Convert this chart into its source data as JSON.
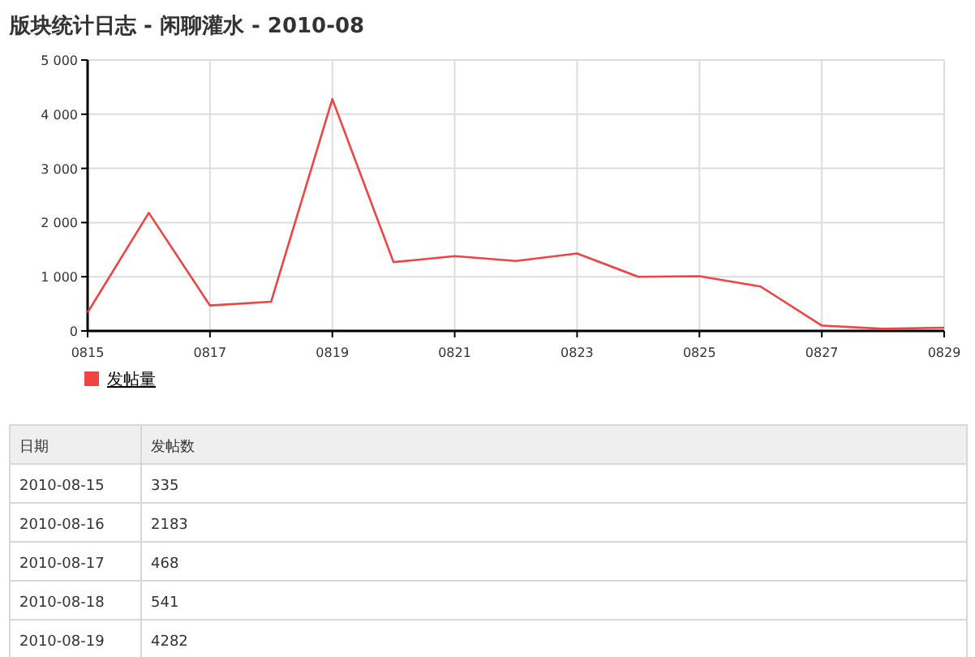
{
  "chart_data": {
    "type": "line",
    "title": "版块统计日志 - 闲聊灌水 - 2010-08",
    "categories": [
      "0815",
      null,
      "0817",
      null,
      "0819",
      null,
      "0821",
      null,
      "0823",
      null,
      "0825",
      null,
      "0827",
      null,
      "0829"
    ],
    "series": [
      {
        "name": "发帖量",
        "color": "#ee4444",
        "values": [
          340,
          2180,
          470,
          540,
          4280,
          1270,
          1380,
          1290,
          1430,
          1000,
          1010,
          820,
          100,
          40,
          60
        ]
      }
    ],
    "ylim": [
      0,
      5000
    ],
    "yticks": [
      {
        "value": 0,
        "label": "0"
      },
      {
        "value": 1000,
        "label": "1 000"
      },
      {
        "value": 2000,
        "label": "2 000"
      },
      {
        "value": 3000,
        "label": "3 000"
      },
      {
        "value": 4000,
        "label": "4 000"
      },
      {
        "value": 5000,
        "label": "5 000"
      }
    ],
    "grid": true,
    "legend": "bottom left",
    "marker": "none",
    "line_style": "solid",
    "annotations": [
      "日期",
      "发帖数",
      "2010-08-15",
      "335",
      "2010-08-16",
      "2183",
      "2010-08-17",
      "468",
      "2010-08-18",
      "541",
      "2010-08-19",
      "4282"
    ]
  }
}
